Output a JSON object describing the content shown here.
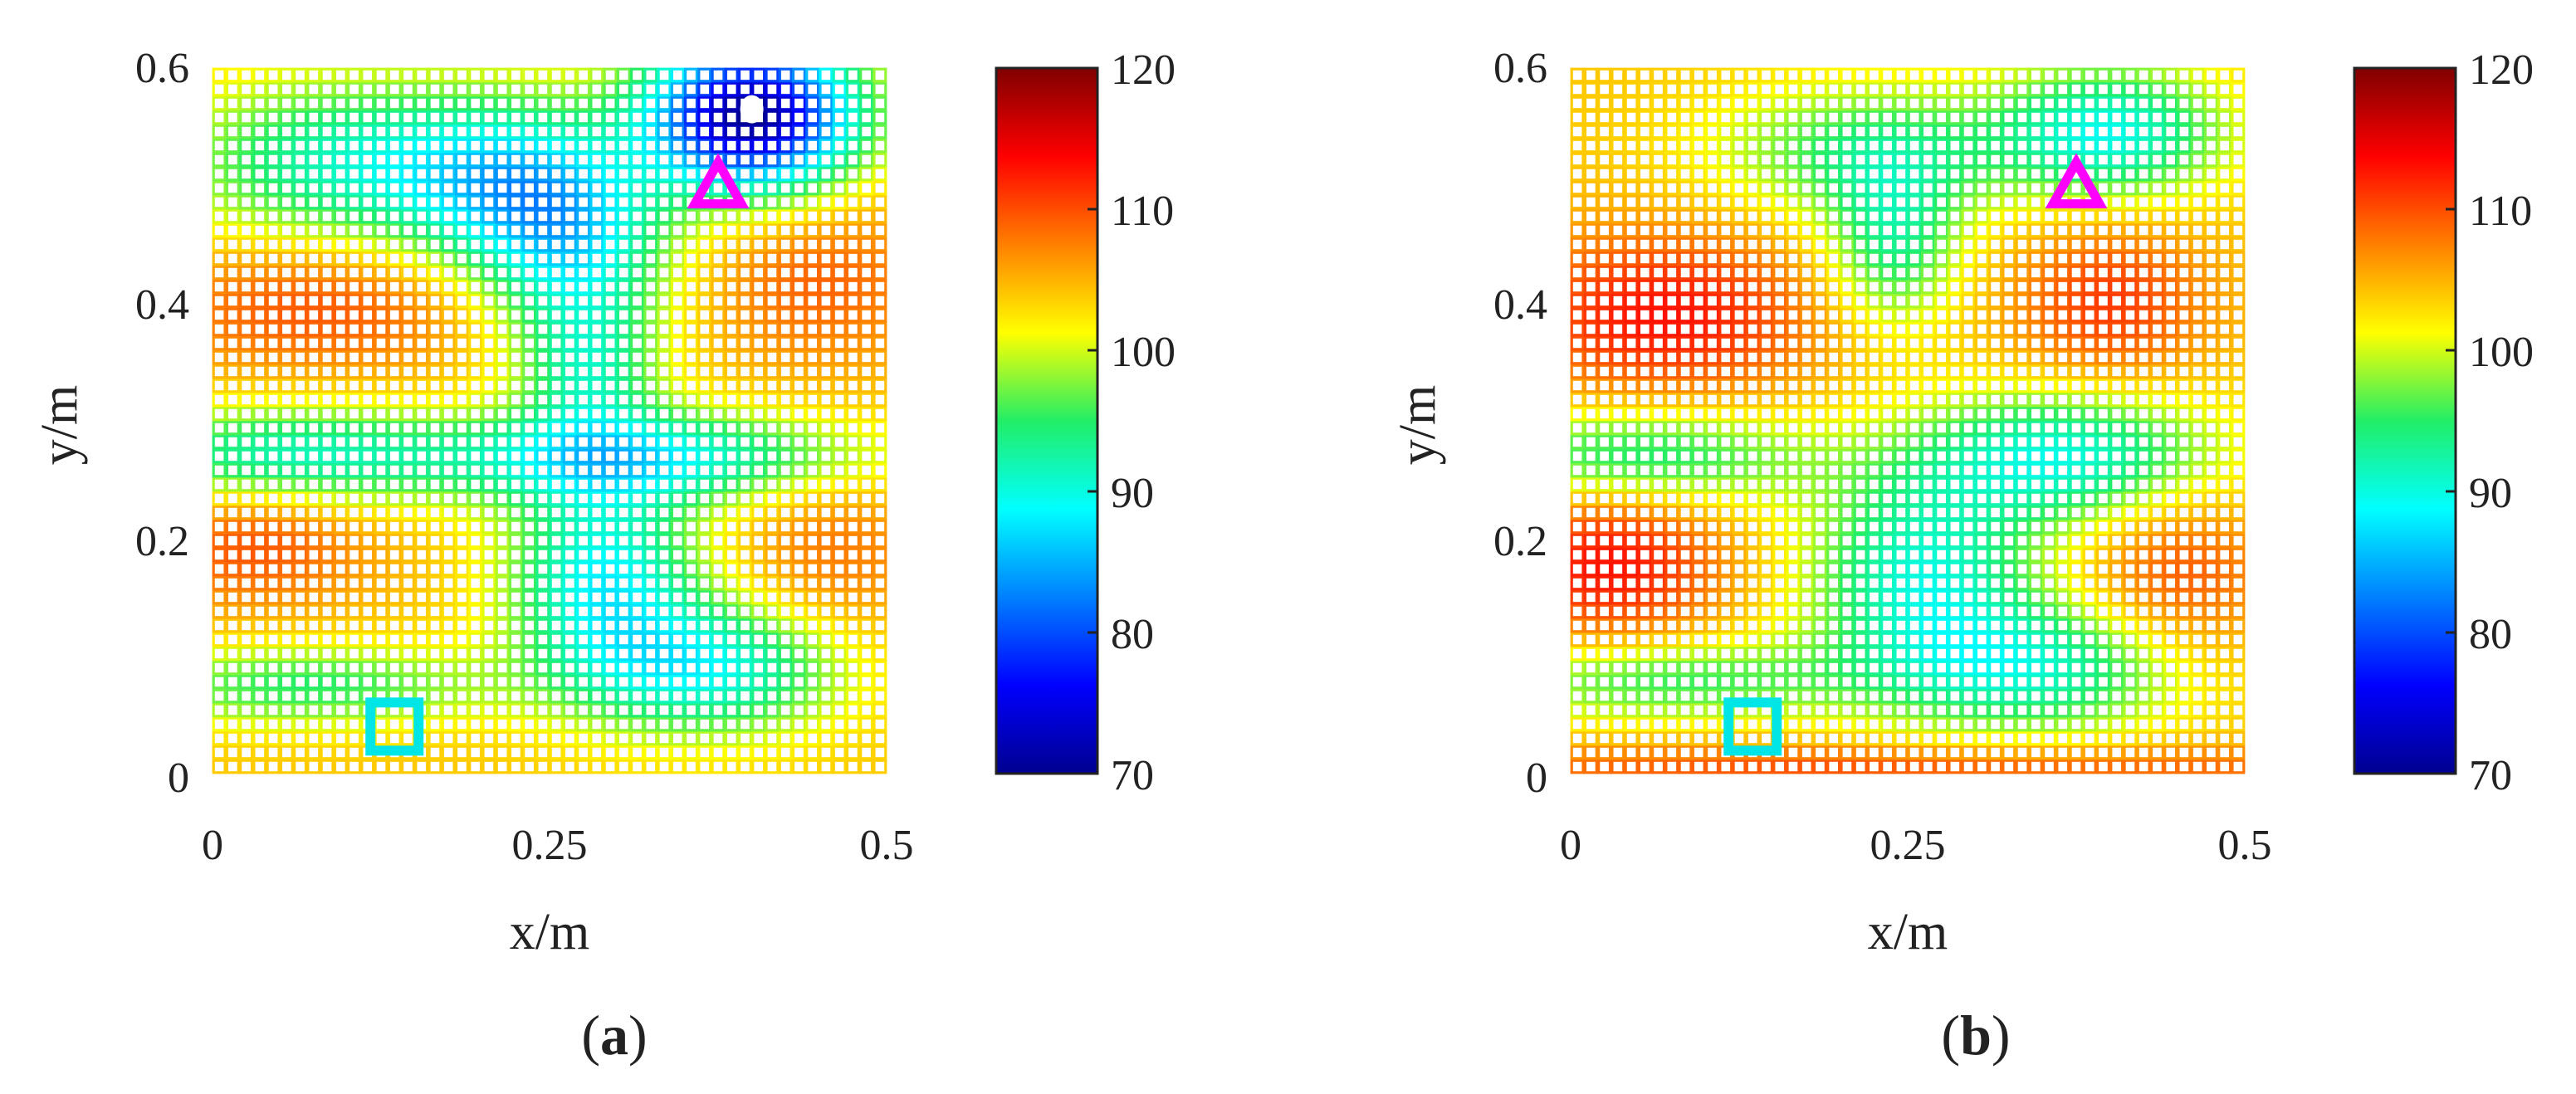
{
  "chart_data": [
    {
      "type": "heatmap",
      "panel_label": "(a)",
      "panel_letter": "a",
      "xlabel": "x/m",
      "ylabel": "y/m",
      "xlim": [
        0,
        0.5
      ],
      "ylim": [
        0,
        0.6
      ],
      "xticks": [
        "0",
        "0.25",
        "0.5"
      ],
      "yticks": [
        "0",
        "0.2",
        "0.4",
        "0.6"
      ],
      "colorbar": {
        "min": 70,
        "max": 120,
        "ticks": [
          "70",
          "80",
          "90",
          "100",
          "110",
          "120"
        ]
      },
      "grid_cells": 50,
      "background_value": 104,
      "blobs": [
        {
          "x": 0.4,
          "y": 0.56,
          "sx": 0.055,
          "sy": 0.045,
          "a": -34
        },
        {
          "x": 0.1,
          "y": 0.52,
          "sx": 0.09,
          "sy": 0.05,
          "a": -12
        },
        {
          "x": 0.22,
          "y": 0.5,
          "sx": 0.06,
          "sy": 0.05,
          "a": -12
        },
        {
          "x": 0.27,
          "y": 0.44,
          "sx": 0.05,
          "sy": 0.06,
          "a": -13
        },
        {
          "x": 0.28,
          "y": 0.34,
          "sx": 0.035,
          "sy": 0.04,
          "a": -9
        },
        {
          "x": 0.05,
          "y": 0.27,
          "sx": 0.09,
          "sy": 0.03,
          "a": -12
        },
        {
          "x": 0.32,
          "y": 0.27,
          "sx": 0.12,
          "sy": 0.028,
          "a": -14
        },
        {
          "x": 0.29,
          "y": 0.17,
          "sx": 0.05,
          "sy": 0.06,
          "a": -15
        },
        {
          "x": 0.37,
          "y": 0.09,
          "sx": 0.07,
          "sy": 0.04,
          "a": -14
        },
        {
          "x": 0.07,
          "y": 0.075,
          "sx": 0.1,
          "sy": 0.025,
          "a": -9
        },
        {
          "x": 0.03,
          "y": 0.2,
          "sx": 0.06,
          "sy": 0.04,
          "a": 6
        },
        {
          "x": 0.08,
          "y": 0.4,
          "sx": 0.09,
          "sy": 0.04,
          "a": 6
        },
        {
          "x": 0.45,
          "y": 0.42,
          "sx": 0.06,
          "sy": 0.05,
          "a": 5
        },
        {
          "x": 0.46,
          "y": 0.19,
          "sx": 0.05,
          "sy": 0.06,
          "a": 4
        }
      ],
      "markers": [
        {
          "shape": "triangle",
          "x": 0.375,
          "y": 0.5,
          "color": "#ff00ff"
        },
        {
          "shape": "square",
          "x": 0.135,
          "y": 0.04,
          "color": "#00e5e5"
        },
        {
          "shape": "dot",
          "x": 0.4,
          "y": 0.565,
          "color": "#ffffff"
        }
      ]
    },
    {
      "type": "heatmap",
      "panel_label": "(b)",
      "panel_letter": "b",
      "xlabel": "x/m",
      "ylabel": "y/m",
      "xlim": [
        0,
        0.5
      ],
      "ylim": [
        0,
        0.6
      ],
      "xticks": [
        "0",
        "0.25",
        "0.5"
      ],
      "yticks": [
        "0",
        "0.2",
        "0.4",
        "0.6"
      ],
      "colorbar": {
        "min": 70,
        "max": 120,
        "ticks": [
          "70",
          "80",
          "90",
          "100",
          "110",
          "120"
        ]
      },
      "grid_cells": 50,
      "background_value": 104,
      "blobs": [
        {
          "x": 0.4,
          "y": 0.545,
          "sx": 0.06,
          "sy": 0.04,
          "a": -14
        },
        {
          "x": 0.22,
          "y": 0.53,
          "sx": 0.08,
          "sy": 0.04,
          "a": -9
        },
        {
          "x": 0.24,
          "y": 0.45,
          "sx": 0.035,
          "sy": 0.05,
          "a": -10
        },
        {
          "x": 0.05,
          "y": 0.27,
          "sx": 0.09,
          "sy": 0.03,
          "a": -11
        },
        {
          "x": 0.37,
          "y": 0.27,
          "sx": 0.08,
          "sy": 0.04,
          "a": -14
        },
        {
          "x": 0.26,
          "y": 0.17,
          "sx": 0.06,
          "sy": 0.06,
          "a": -13
        },
        {
          "x": 0.35,
          "y": 0.09,
          "sx": 0.08,
          "sy": 0.04,
          "a": -12
        },
        {
          "x": 0.07,
          "y": 0.08,
          "sx": 0.1,
          "sy": 0.025,
          "a": -9
        },
        {
          "x": 0.03,
          "y": 0.18,
          "sx": 0.06,
          "sy": 0.05,
          "a": 9
        },
        {
          "x": 0.07,
          "y": 0.39,
          "sx": 0.08,
          "sy": 0.05,
          "a": 9
        },
        {
          "x": 0.4,
          "y": 0.4,
          "sx": 0.05,
          "sy": 0.05,
          "a": 7
        },
        {
          "x": 0.45,
          "y": 0.17,
          "sx": 0.05,
          "sy": 0.06,
          "a": 6
        },
        {
          "x": 0.25,
          "y": 0.005,
          "sx": 0.3,
          "sy": 0.015,
          "a": 6
        }
      ],
      "markers": [
        {
          "shape": "triangle",
          "x": 0.375,
          "y": 0.5,
          "color": "#ff00ff"
        },
        {
          "shape": "square",
          "x": 0.135,
          "y": 0.04,
          "color": "#00e5e5"
        }
      ]
    }
  ]
}
